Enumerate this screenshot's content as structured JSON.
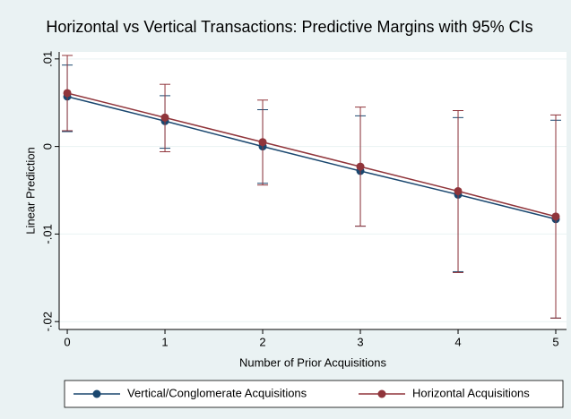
{
  "chart_data": {
    "type": "line",
    "title": "Horizontal vs Vertical Transactions: Predictive Margins with 95% CIs",
    "x_label": "Number of Prior Acquisitions",
    "y_label": "Linear Prediction",
    "x": [
      0,
      1,
      2,
      3,
      4,
      5
    ],
    "xlim": [
      -0.083,
      5.11
    ],
    "xticks": [
      0,
      1,
      2,
      3,
      4,
      5
    ],
    "ylim": [
      -0.0209,
      0.0108
    ],
    "yticks": [
      {
        "value": 0.01,
        "label": ".01"
      },
      0,
      {
        "value": -0.01,
        "label": "-.01"
      },
      {
        "value": -0.02,
        "label": "-.02"
      }
    ],
    "grid": true,
    "legend": "bottom",
    "series": [
      {
        "name": "Vertical/Conglomerate Acquisitions",
        "color": "#1a476f",
        "values": [
          0.0057,
          0.0029,
          0.0,
          -0.0028,
          -0.0055,
          -0.0083
        ],
        "upper": [
          0.0093,
          0.0058,
          0.0042,
          0.0035,
          0.0033,
          0.003
        ],
        "lower": [
          0.0017,
          -0.0002,
          -0.0042,
          -0.0091,
          -0.0143,
          -0.0196
        ]
      },
      {
        "name": "Horizontal Acquisitions",
        "color": "#90353b",
        "values": [
          0.0061,
          0.0033,
          0.0005,
          -0.0023,
          -0.0051,
          -0.008
        ],
        "upper": [
          0.0104,
          0.0071,
          0.0053,
          0.0045,
          0.0041,
          0.0036
        ],
        "lower": [
          0.0018,
          -0.0006,
          -0.0044,
          -0.0091,
          -0.0144,
          -0.0196
        ]
      }
    ]
  }
}
